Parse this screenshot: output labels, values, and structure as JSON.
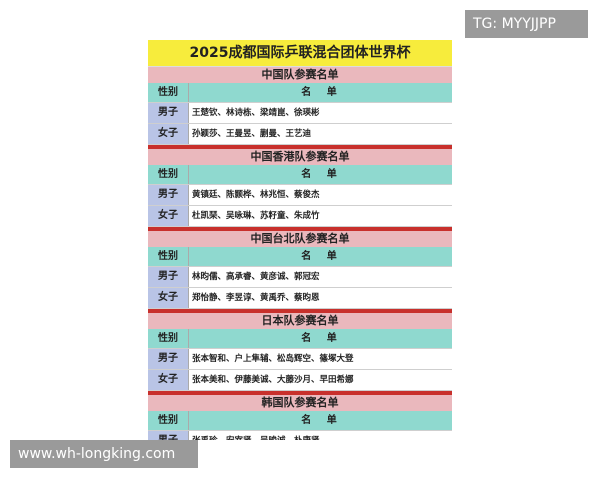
{
  "title": "2025成都国际乒联混合团体世界杯",
  "header": {
    "gender": "性别",
    "names": "名 单"
  },
  "sections": [
    {
      "title": "中国队参赛名单",
      "rows": [
        {
          "gender": "男子",
          "names": "王楚钦、林诗栋、梁靖崑、徐瑛彬"
        },
        {
          "gender": "女子",
          "names": "孙颖莎、王曼昱、蒯曼、王艺迪"
        }
      ]
    },
    {
      "title": "中国香港队参赛名单",
      "rows": [
        {
          "gender": "男子",
          "names": "黄镇廷、陈颢桦、林兆恒、蔡俊杰"
        },
        {
          "gender": "女子",
          "names": "杜凯琹、吴咏琳、苏籽童、朱成竹"
        }
      ]
    },
    {
      "title": "中国台北队参赛名单",
      "rows": [
        {
          "gender": "男子",
          "names": "林昀儒、高承睿、黄彦诚、郭冠宏"
        },
        {
          "gender": "女子",
          "names": "郑怡静、李昱谆、黄禹乔、蔡昀恩"
        }
      ]
    },
    {
      "title": "日本队参赛名单",
      "rows": [
        {
          "gender": "男子",
          "names": "张本智和、户上隼辅、松岛辉空、篠塚大登"
        },
        {
          "gender": "女子",
          "names": "张本美和、伊藤美诚、大藤沙月、早田希娜"
        }
      ]
    },
    {
      "title": "韩国队参赛名单",
      "rows": [
        {
          "gender": "男子",
          "names": "张禹珍、安宰贤、吴晙诚、朴康贤"
        }
      ]
    }
  ],
  "watermarks": {
    "top": "TG: MYYJJPP",
    "bottom": "www.wh-longking.com"
  }
}
